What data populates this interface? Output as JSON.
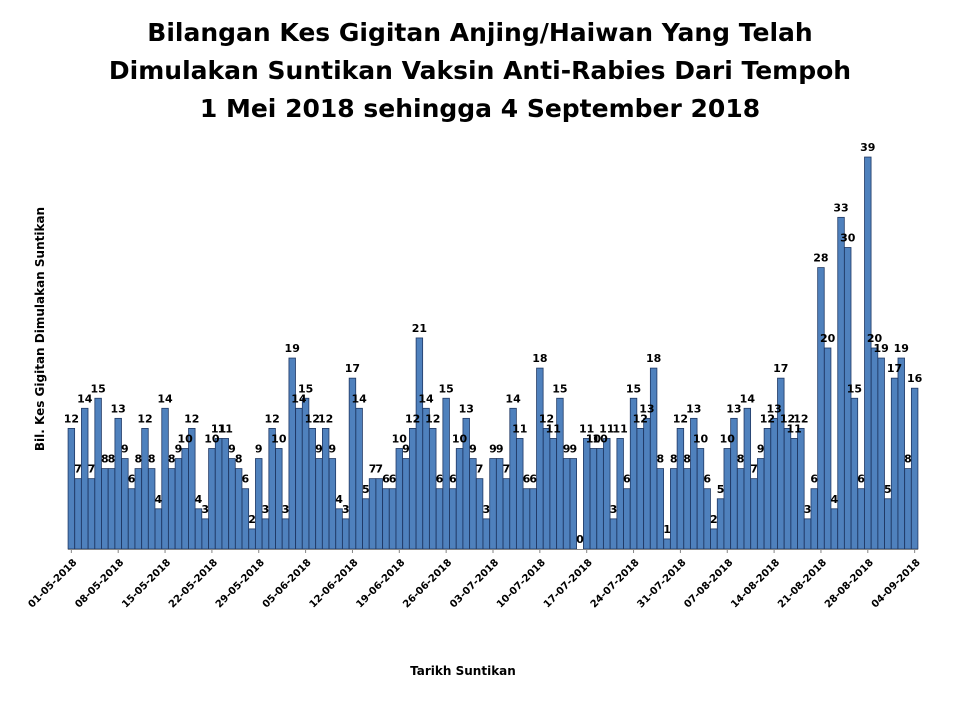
{
  "chart_data": {
    "type": "bar",
    "title_lines": [
      "Bilangan Kes Gigitan Anjing/Haiwan  Yang Telah",
      "Dimulakan Suntikan Vaksin Anti-Rabies Dari Tempoh",
      "1 Mei 2018  sehingga 4 September 2018"
    ],
    "xlabel": "Tarikh Suntikan",
    "ylabel": "Bil. Kes Gigitan Dimulakan Suntikan",
    "start_date": "01-05-2018",
    "end_date": "04-09-2018",
    "tick_labels": [
      "01-05-2018",
      "08-05-2018",
      "15-05-2018",
      "22-05-2018",
      "29-05-2018",
      "05-06-2018",
      "12-06-2018",
      "19-06-2018",
      "26-06-2018",
      "03-07-2018",
      "10-07-2018",
      "17-07-2018",
      "24-07-2018",
      "31-07-2018",
      "07-08-2018",
      "14-08-2018",
      "21-08-2018",
      "28-08-2018",
      "04-09-2018"
    ],
    "values": [
      12,
      7,
      14,
      7,
      15,
      8,
      8,
      13,
      9,
      6,
      8,
      12,
      8,
      4,
      14,
      8,
      9,
      10,
      12,
      4,
      3,
      10,
      11,
      11,
      9,
      8,
      6,
      2,
      9,
      3,
      12,
      10,
      3,
      19,
      14,
      15,
      12,
      9,
      12,
      9,
      4,
      3,
      17,
      14,
      5,
      7,
      7,
      6,
      6,
      10,
      9,
      12,
      21,
      14,
      12,
      6,
      15,
      6,
      10,
      13,
      9,
      7,
      3,
      9,
      9,
      7,
      14,
      11,
      6,
      6,
      18,
      12,
      11,
      15,
      9,
      9,
      0,
      11,
      10,
      10,
      11,
      3,
      11,
      6,
      15,
      12,
      13,
      18,
      8,
      1,
      8,
      12,
      8,
      13,
      10,
      6,
      2,
      5,
      10,
      13,
      8,
      14,
      7,
      9,
      12,
      13,
      17,
      12,
      11,
      12,
      3,
      6,
      28,
      20,
      4,
      33,
      30,
      15,
      6,
      39,
      20,
      19,
      5,
      17,
      19,
      8,
      16
    ],
    "ylim": [
      0,
      42
    ],
    "grid": false,
    "legend": "none",
    "bar_color": "#4F81BD",
    "bar_edge_color": "#1F3864"
  }
}
